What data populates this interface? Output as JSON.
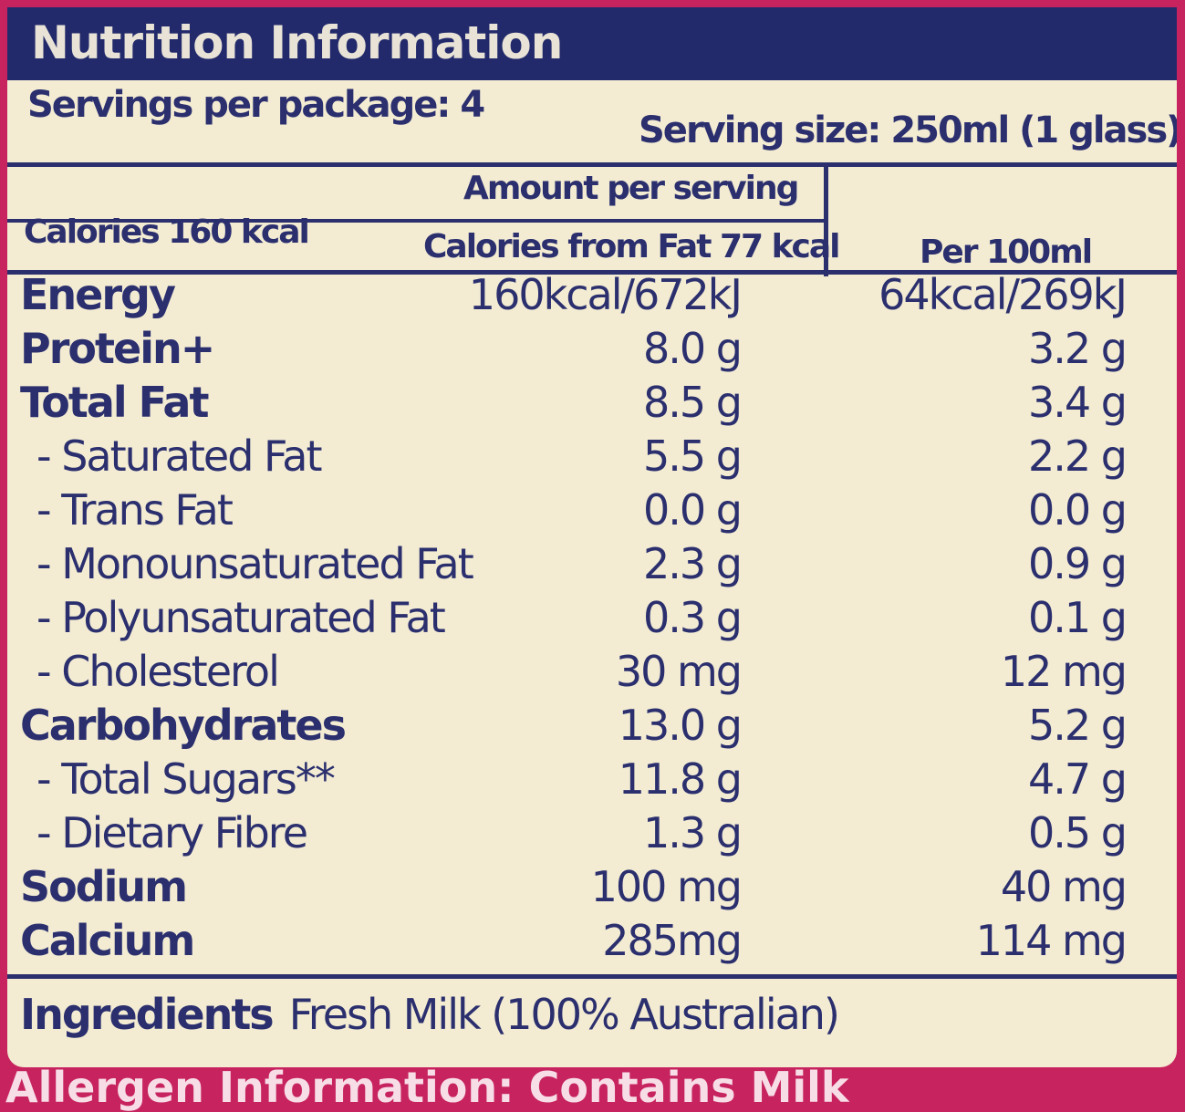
{
  "title": "Nutrition Information",
  "servings_per_package": "Servings per package: 4",
  "serving_size": "Serving size: 250ml (1 glass)",
  "amount_per_serving": "Amount per serving",
  "calories": "Calories 160 kcal",
  "calories_from_fat": "Calories from Fat 77 kcal",
  "per_100ml": "Per 100ml",
  "rows": [
    {
      "name": "Energy",
      "per_serving": "160kcal/672kJ",
      "per_100ml": "64kcal/269kJ"
    },
    {
      "name": "Protein+",
      "per_serving": "8.0 g",
      "per_100ml": "3.2 g"
    },
    {
      "name": "Total Fat",
      "per_serving": "8.5 g",
      "per_100ml": "3.4 g"
    },
    {
      "name": "- Saturated Fat",
      "per_serving": "5.5 g",
      "per_100ml": "2.2 g"
    },
    {
      "name": "- Trans Fat",
      "per_serving": "0.0 g",
      "per_100ml": "0.0 g"
    },
    {
      "name": "- Monounsaturated Fat",
      "per_serving": "2.3 g",
      "per_100ml": "0.9 g"
    },
    {
      "name": "- Polyunsaturated Fat",
      "per_serving": "0.3 g",
      "per_100ml": "0.1 g"
    },
    {
      "name": "- Cholesterol",
      "per_serving": "30 mg",
      "per_100ml": "12 mg"
    },
    {
      "name": "Carbohydrates",
      "per_serving": "13.0 g",
      "per_100ml": "5.2 g"
    },
    {
      "name": "- Total Sugars**",
      "per_serving": "11.8 g",
      "per_100ml": "4.7 g"
    },
    {
      "name": "- Dietary Fibre",
      "per_serving": "1.3 g",
      "per_100ml": "0.5 g"
    },
    {
      "name": "Sodium",
      "per_serving": "100 mg",
      "per_100ml": "40 mg"
    },
    {
      "name": "Calcium",
      "per_serving": "285mg",
      "per_100ml": "114 mg"
    }
  ],
  "ingredients_label": "Ingredients",
  "ingredients_value": "Fresh Milk (100% Australian)",
  "allergen": "Allergen Information: Contains Milk"
}
